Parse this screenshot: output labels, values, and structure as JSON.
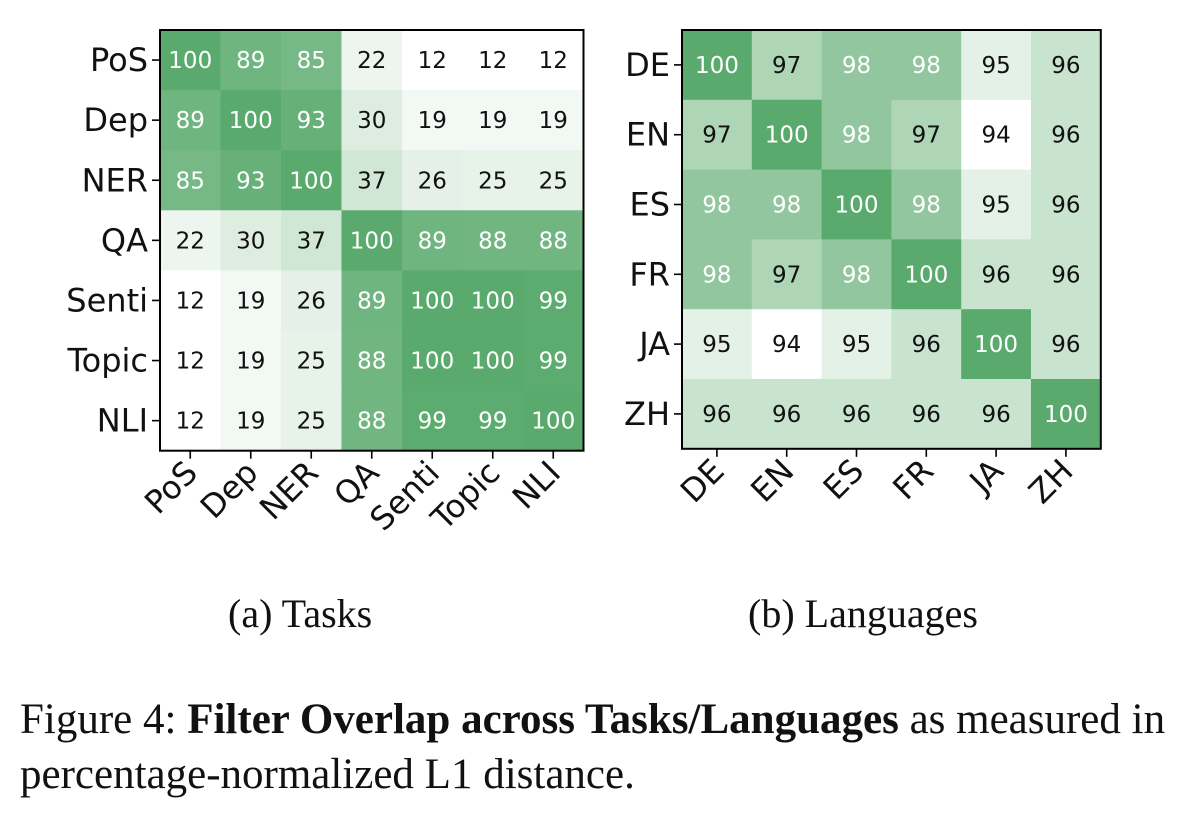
{
  "chart_data": [
    {
      "type": "heatmap",
      "panel": "a",
      "title": "(a) Tasks",
      "rows": [
        "PoS",
        "Dep",
        "NER",
        "QA",
        "Senti",
        "Topic",
        "NLI"
      ],
      "cols": [
        "PoS",
        "Dep",
        "NER",
        "QA",
        "Senti",
        "Topic",
        "NLI"
      ],
      "values": [
        [
          100,
          89,
          85,
          22,
          12,
          12,
          12
        ],
        [
          89,
          100,
          93,
          30,
          19,
          19,
          19
        ],
        [
          85,
          93,
          100,
          37,
          26,
          25,
          25
        ],
        [
          22,
          30,
          37,
          100,
          89,
          88,
          88
        ],
        [
          12,
          19,
          26,
          89,
          100,
          100,
          99
        ],
        [
          12,
          19,
          25,
          88,
          100,
          100,
          99
        ],
        [
          12,
          19,
          25,
          88,
          99,
          99,
          100
        ]
      ],
      "vmin": 12,
      "vmax": 100,
      "colormap": "Greens",
      "colormap_low": "#ffffff",
      "colormap_high": "#5aaa6d"
    },
    {
      "type": "heatmap",
      "panel": "b",
      "title": "(b) Languages",
      "rows": [
        "DE",
        "EN",
        "ES",
        "FR",
        "JA",
        "ZH"
      ],
      "cols": [
        "DE",
        "EN",
        "ES",
        "FR",
        "JA",
        "ZH"
      ],
      "values": [
        [
          100,
          97,
          98,
          98,
          95,
          96
        ],
        [
          97,
          100,
          98,
          97,
          94,
          96
        ],
        [
          98,
          98,
          100,
          98,
          95,
          96
        ],
        [
          98,
          97,
          98,
          100,
          96,
          96
        ],
        [
          95,
          94,
          95,
          96,
          100,
          96
        ],
        [
          96,
          96,
          96,
          96,
          96,
          100
        ]
      ],
      "vmin": 94,
      "vmax": 100,
      "colormap": "Greens",
      "colormap_low": "#ffffff",
      "colormap_high": "#5aaa6d"
    }
  ],
  "caption": {
    "prefix": "Figure 4: ",
    "bold": "Filter Overlap across Tasks/Languages",
    "rest": " as measured in percentage-normalized L1 distance."
  }
}
